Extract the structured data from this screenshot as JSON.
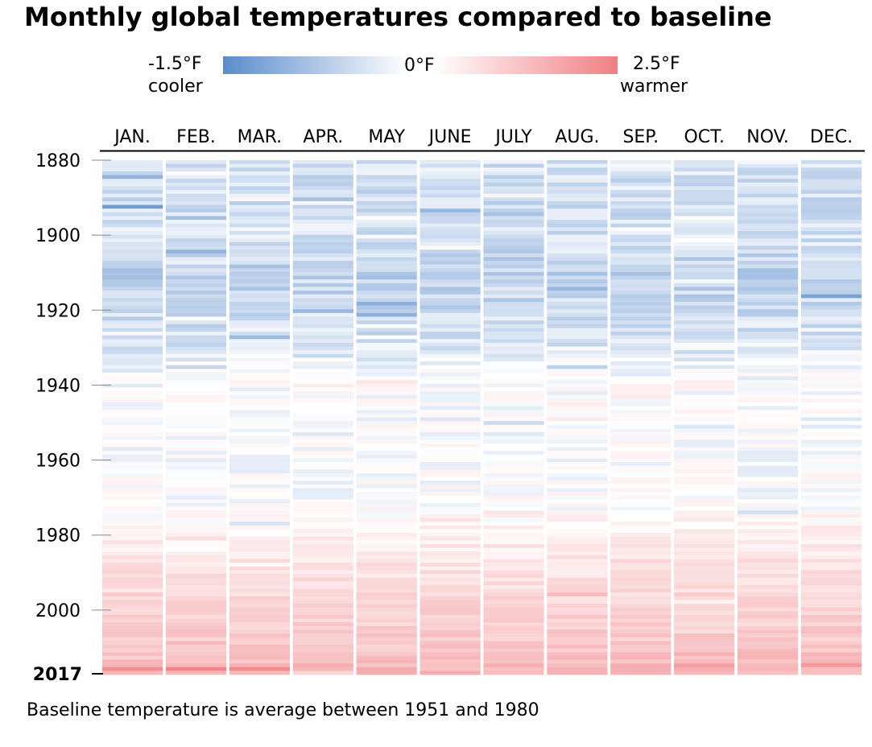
{
  "title": "Monthly global temperatures compared to baseline",
  "legend": {
    "min_value": "-1.5°F",
    "min_label": "cooler",
    "mid_value": "0°F",
    "max_value": "2.5°F",
    "max_label": "warmer",
    "cool_color": "#5b8ccb",
    "neutral_color": "#ffffff",
    "warm_color": "#f07f83"
  },
  "caption": "Baseline temperature is average between 1951 and 1980",
  "chart_data": {
    "type": "heatmap",
    "title": "Monthly global temperatures compared to baseline",
    "columns": [
      "JAN.",
      "FEB.",
      "MAR.",
      "APR.",
      "MAY",
      "JUNE",
      "JULY",
      "AUG.",
      "SEP.",
      "OCT.",
      "NOV.",
      "DEC."
    ],
    "row_range": [
      1880,
      2017
    ],
    "y_ticks": [
      "1880",
      "1900",
      "1920",
      "1940",
      "1960",
      "1980",
      "2000"
    ],
    "y_last_tick": "2017",
    "color_range": [
      -1.5,
      2.5
    ],
    "units": "°F",
    "trend_anchors": {
      "years": [
        1880,
        1890,
        1900,
        1910,
        1920,
        1930,
        1940,
        1950,
        1960,
        1970,
        1980,
        1990,
        2000,
        2010,
        2017
      ],
      "anomaly": [
        -0.35,
        -0.45,
        -0.35,
        -0.6,
        -0.45,
        -0.3,
        0.05,
        -0.05,
        0.0,
        0.0,
        0.3,
        0.6,
        0.85,
        1.1,
        1.45
      ]
    },
    "notable_cells": [
      {
        "month": "JAN.",
        "year": 1892,
        "anomaly": -1.3
      },
      {
        "month": "DEC.",
        "year": 1916,
        "anomaly": -1.2
      },
      {
        "month": "FEB.",
        "year": 1904,
        "anomaly": -1.0
      },
      {
        "month": "JAN.",
        "year": 1884,
        "anomaly": -1.0
      },
      {
        "month": "JAN.",
        "year": 2016,
        "anomaly": 2.2
      },
      {
        "month": "FEB.",
        "year": 2016,
        "anomaly": 2.4
      },
      {
        "month": "MAR.",
        "year": 2016,
        "anomaly": 2.3
      },
      {
        "month": "DEC.",
        "year": 2015,
        "anomaly": 2.0
      },
      {
        "month": "OCT.",
        "year": 2015,
        "anomaly": 1.9
      }
    ]
  }
}
